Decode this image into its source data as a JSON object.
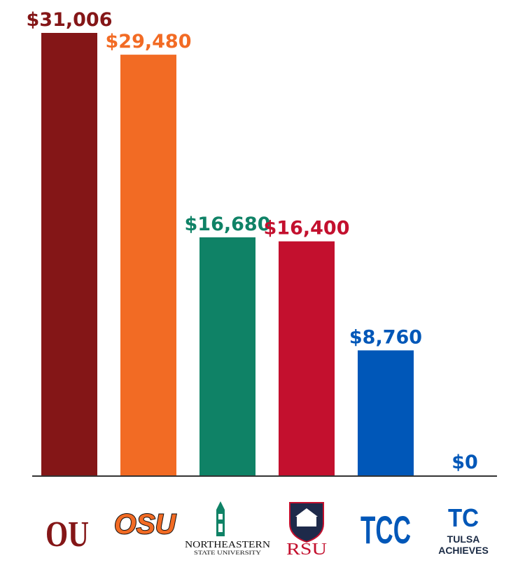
{
  "chart_data": {
    "type": "bar",
    "title": "",
    "xlabel": "",
    "ylabel": "",
    "ylim": [
      0,
      31006
    ],
    "grid": false,
    "legend": "none",
    "categories": [
      {
        "key": "ou",
        "logo": "ou-logo",
        "color": "#841617",
        "logo_text": [
          "OU"
        ]
      },
      {
        "key": "osu",
        "logo": "osu-logo",
        "color": "#F26B24",
        "logo_text": [
          "OSU"
        ]
      },
      {
        "key": "nsu",
        "logo": "nsu-logo",
        "color": "#0F8266",
        "logo_text": [
          "NORTHEASTERN",
          "STATE UNIVERSITY"
        ]
      },
      {
        "key": "rsu",
        "logo": "rsu-logo",
        "color": "#C3102E",
        "logo_text": [
          "RSU"
        ]
      },
      {
        "key": "tcc",
        "logo": "tcc-logo",
        "color": "#0057B8",
        "logo_text": [
          "TCC"
        ]
      },
      {
        "key": "tulsa-achieves",
        "logo": "tcc-tulsa-achieves-logo",
        "color": "#0057B8",
        "logo_text": [
          "TC",
          "TULSA",
          "ACHIEVES"
        ]
      }
    ],
    "values": [
      31006,
      29480,
      16680,
      16400,
      8760,
      0
    ],
    "data_labels": [
      "$31,006",
      "$29,480",
      "$16,680",
      "$16,400",
      "$8,760",
      "$0"
    ]
  }
}
